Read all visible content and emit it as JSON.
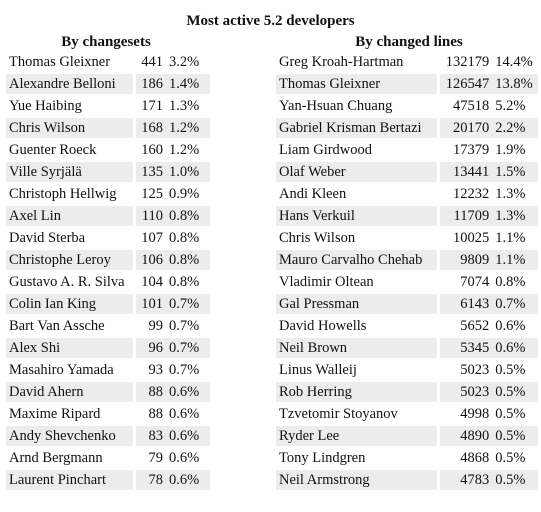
{
  "title": "Most active 5.2 developers",
  "by_changesets": {
    "heading": "By changesets",
    "rows": [
      {
        "name": "Thomas Gleixner",
        "count": "441",
        "pct": "3.2%"
      },
      {
        "name": "Alexandre Belloni",
        "count": "186",
        "pct": "1.4%"
      },
      {
        "name": "Yue Haibing",
        "count": "171",
        "pct": "1.3%"
      },
      {
        "name": "Chris Wilson",
        "count": "168",
        "pct": "1.2%"
      },
      {
        "name": "Guenter Roeck",
        "count": "160",
        "pct": "1.2%"
      },
      {
        "name": "Ville Syrjälä",
        "count": "135",
        "pct": "1.0%"
      },
      {
        "name": "Christoph Hellwig",
        "count": "125",
        "pct": "0.9%"
      },
      {
        "name": "Axel Lin",
        "count": "110",
        "pct": "0.8%"
      },
      {
        "name": "David Sterba",
        "count": "107",
        "pct": "0.8%"
      },
      {
        "name": "Christophe Leroy",
        "count": "106",
        "pct": "0.8%"
      },
      {
        "name": "Gustavo A. R. Silva",
        "count": "104",
        "pct": "0.8%"
      },
      {
        "name": "Colin Ian King",
        "count": "101",
        "pct": "0.7%"
      },
      {
        "name": "Bart Van Assche",
        "count": "99",
        "pct": "0.7%"
      },
      {
        "name": "Alex Shi",
        "count": "96",
        "pct": "0.7%"
      },
      {
        "name": "Masahiro Yamada",
        "count": "93",
        "pct": "0.7%"
      },
      {
        "name": "David Ahern",
        "count": "88",
        "pct": "0.6%"
      },
      {
        "name": "Maxime Ripard",
        "count": "88",
        "pct": "0.6%"
      },
      {
        "name": "Andy Shevchenko",
        "count": "83",
        "pct": "0.6%"
      },
      {
        "name": "Arnd Bergmann",
        "count": "79",
        "pct": "0.6%"
      },
      {
        "name": "Laurent Pinchart",
        "count": "78",
        "pct": "0.6%"
      }
    ]
  },
  "by_changed_lines": {
    "heading": "By changed lines",
    "rows": [
      {
        "name": "Greg Kroah-Hartman",
        "count": "132179",
        "pct": "14.4%"
      },
      {
        "name": "Thomas Gleixner",
        "count": "126547",
        "pct": "13.8%"
      },
      {
        "name": "Yan-Hsuan Chuang",
        "count": "47518",
        "pct": "5.2%"
      },
      {
        "name": "Gabriel Krisman Bertazi",
        "count": "20170",
        "pct": "2.2%"
      },
      {
        "name": "Liam Girdwood",
        "count": "17379",
        "pct": "1.9%"
      },
      {
        "name": "Olaf Weber",
        "count": "13441",
        "pct": "1.5%"
      },
      {
        "name": "Andi Kleen",
        "count": "12232",
        "pct": "1.3%"
      },
      {
        "name": "Hans Verkuil",
        "count": "11709",
        "pct": "1.3%"
      },
      {
        "name": "Chris Wilson",
        "count": "10025",
        "pct": "1.1%"
      },
      {
        "name": "Mauro Carvalho Chehab",
        "count": "9809",
        "pct": "1.1%"
      },
      {
        "name": "Vladimir Oltean",
        "count": "7074",
        "pct": "0.8%"
      },
      {
        "name": "Gal Pressman",
        "count": "6143",
        "pct": "0.7%"
      },
      {
        "name": "David Howells",
        "count": "5652",
        "pct": "0.6%"
      },
      {
        "name": "Neil Brown",
        "count": "5345",
        "pct": "0.6%"
      },
      {
        "name": "Linus Walleij",
        "count": "5023",
        "pct": "0.5%"
      },
      {
        "name": "Rob Herring",
        "count": "5023",
        "pct": "0.5%"
      },
      {
        "name": "Tzvetomir Stoyanov",
        "count": "4998",
        "pct": "0.5%"
      },
      {
        "name": "Ryder Lee",
        "count": "4890",
        "pct": "0.5%"
      },
      {
        "name": "Tony Lindgren",
        "count": "4868",
        "pct": "0.5%"
      },
      {
        "name": "Neil Armstrong",
        "count": "4783",
        "pct": "0.5%"
      }
    ]
  },
  "colors": {
    "row_shade": "#ececec",
    "text": "#111111"
  }
}
